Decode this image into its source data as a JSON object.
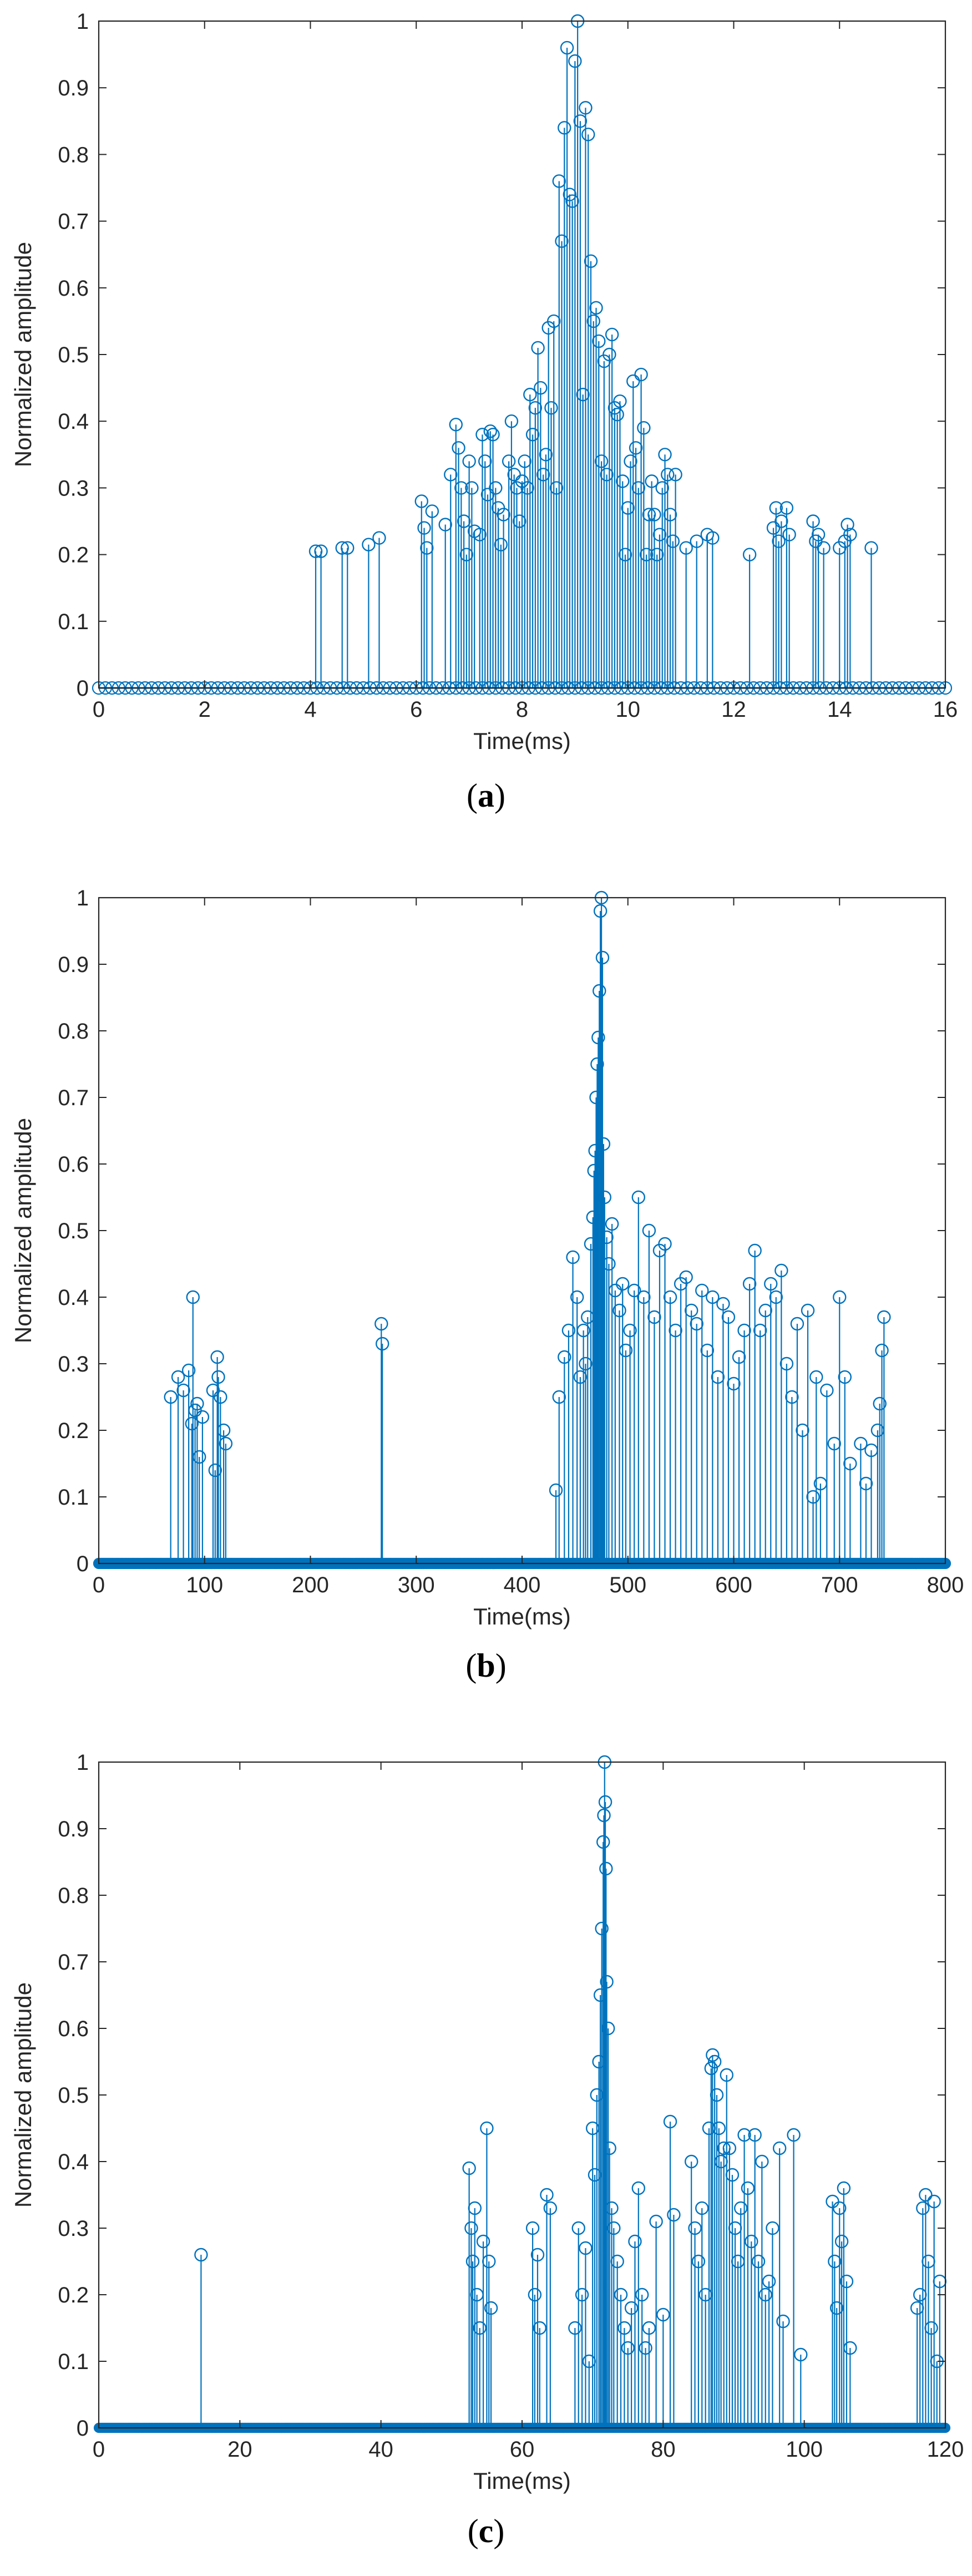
{
  "chart_data": [
    {
      "type": "stem",
      "caption_letter": "a",
      "xlabel": "Time(ms)",
      "ylabel": "Normalized amplitude",
      "xlim": [
        0,
        16
      ],
      "ylim": [
        0,
        1
      ],
      "xticks": [
        0,
        2,
        4,
        6,
        8,
        10,
        12,
        14,
        16
      ],
      "yticks": [
        0,
        0.1,
        0.2,
        0.3,
        0.4,
        0.5,
        0.6,
        0.7,
        0.8,
        0.9,
        1
      ],
      "color": "#0072BD",
      "zero_stems": {
        "start": 0,
        "end": 16,
        "step": 0.125
      },
      "points": [
        [
          4.1,
          0.205
        ],
        [
          4.2,
          0.205
        ],
        [
          4.6,
          0.21
        ],
        [
          4.7,
          0.21
        ],
        [
          5.1,
          0.215
        ],
        [
          5.3,
          0.225
        ],
        [
          6.1,
          0.28
        ],
        [
          6.15,
          0.24
        ],
        [
          6.2,
          0.21
        ],
        [
          6.3,
          0.265
        ],
        [
          6.55,
          0.245
        ],
        [
          6.65,
          0.32
        ],
        [
          6.75,
          0.395
        ],
        [
          6.8,
          0.36
        ],
        [
          6.85,
          0.3
        ],
        [
          6.9,
          0.25
        ],
        [
          6.95,
          0.2
        ],
        [
          7.0,
          0.34
        ],
        [
          7.05,
          0.3
        ],
        [
          7.1,
          0.235
        ],
        [
          7.2,
          0.23
        ],
        [
          7.25,
          0.38
        ],
        [
          7.3,
          0.34
        ],
        [
          7.35,
          0.29
        ],
        [
          7.4,
          0.385
        ],
        [
          7.45,
          0.38
        ],
        [
          7.5,
          0.3
        ],
        [
          7.55,
          0.27
        ],
        [
          7.6,
          0.215
        ],
        [
          7.65,
          0.26
        ],
        [
          7.75,
          0.34
        ],
        [
          7.8,
          0.4
        ],
        [
          7.85,
          0.32
        ],
        [
          7.9,
          0.3
        ],
        [
          7.95,
          0.25
        ],
        [
          8.0,
          0.31
        ],
        [
          8.05,
          0.34
        ],
        [
          8.1,
          0.3
        ],
        [
          8.15,
          0.44
        ],
        [
          8.2,
          0.38
        ],
        [
          8.25,
          0.42
        ],
        [
          8.3,
          0.51
        ],
        [
          8.35,
          0.45
        ],
        [
          8.4,
          0.32
        ],
        [
          8.45,
          0.35
        ],
        [
          8.5,
          0.54
        ],
        [
          8.55,
          0.42
        ],
        [
          8.6,
          0.55
        ],
        [
          8.65,
          0.3
        ],
        [
          8.7,
          0.76
        ],
        [
          8.75,
          0.67
        ],
        [
          8.8,
          0.84
        ],
        [
          8.85,
          0.96
        ],
        [
          8.9,
          0.74
        ],
        [
          8.95,
          0.73
        ],
        [
          9.0,
          0.94
        ],
        [
          9.05,
          1.0
        ],
        [
          9.1,
          0.85
        ],
        [
          9.15,
          0.44
        ],
        [
          9.2,
          0.87
        ],
        [
          9.25,
          0.83
        ],
        [
          9.3,
          0.64
        ],
        [
          9.35,
          0.55
        ],
        [
          9.4,
          0.57
        ],
        [
          9.45,
          0.52
        ],
        [
          9.5,
          0.34
        ],
        [
          9.55,
          0.49
        ],
        [
          9.6,
          0.32
        ],
        [
          9.65,
          0.5
        ],
        [
          9.7,
          0.53
        ],
        [
          9.75,
          0.42
        ],
        [
          9.8,
          0.41
        ],
        [
          9.85,
          0.43
        ],
        [
          9.9,
          0.31
        ],
        [
          9.95,
          0.2
        ],
        [
          10.0,
          0.27
        ],
        [
          10.05,
          0.34
        ],
        [
          10.1,
          0.46
        ],
        [
          10.15,
          0.36
        ],
        [
          10.2,
          0.3
        ],
        [
          10.25,
          0.47
        ],
        [
          10.3,
          0.39
        ],
        [
          10.35,
          0.2
        ],
        [
          10.4,
          0.26
        ],
        [
          10.45,
          0.31
        ],
        [
          10.5,
          0.26
        ],
        [
          10.55,
          0.2
        ],
        [
          10.6,
          0.23
        ],
        [
          10.65,
          0.3
        ],
        [
          10.7,
          0.35
        ],
        [
          10.75,
          0.32
        ],
        [
          10.8,
          0.26
        ],
        [
          10.85,
          0.22
        ],
        [
          10.9,
          0.32
        ],
        [
          11.1,
          0.21
        ],
        [
          11.3,
          0.22
        ],
        [
          11.5,
          0.23
        ],
        [
          11.6,
          0.225
        ],
        [
          12.3,
          0.2
        ],
        [
          12.75,
          0.24
        ],
        [
          12.8,
          0.27
        ],
        [
          12.85,
          0.22
        ],
        [
          12.9,
          0.25
        ],
        [
          13.0,
          0.27
        ],
        [
          13.05,
          0.23
        ],
        [
          13.5,
          0.25
        ],
        [
          13.55,
          0.22
        ],
        [
          13.6,
          0.23
        ],
        [
          13.7,
          0.21
        ],
        [
          14.0,
          0.21
        ],
        [
          14.1,
          0.22
        ],
        [
          14.15,
          0.245
        ],
        [
          14.2,
          0.23
        ],
        [
          14.6,
          0.21
        ]
      ]
    },
    {
      "type": "stem",
      "caption_letter": "b",
      "xlabel": "Time(ms)",
      "ylabel": "Normalized amplitude",
      "xlim": [
        0,
        800
      ],
      "ylim": [
        0,
        1
      ],
      "xticks": [
        0,
        100,
        200,
        300,
        400,
        500,
        600,
        700,
        800
      ],
      "yticks": [
        0,
        0.1,
        0.2,
        0.3,
        0.4,
        0.5,
        0.6,
        0.7,
        0.8,
        0.9,
        1
      ],
      "color": "#0072BD",
      "zero_stems": {
        "start": 0,
        "end": 800,
        "step": 1
      },
      "points": [
        [
          68,
          0.25
        ],
        [
          75,
          0.28
        ],
        [
          80,
          0.26
        ],
        [
          85,
          0.29
        ],
        [
          88,
          0.21
        ],
        [
          89,
          0.4
        ],
        [
          91,
          0.23
        ],
        [
          93,
          0.24
        ],
        [
          95,
          0.16
        ],
        [
          98,
          0.22
        ],
        [
          108,
          0.26
        ],
        [
          110,
          0.14
        ],
        [
          112,
          0.31
        ],
        [
          113,
          0.28
        ],
        [
          115,
          0.25
        ],
        [
          118,
          0.2
        ],
        [
          120,
          0.18
        ],
        [
          267,
          0.36
        ],
        [
          268,
          0.33
        ],
        [
          432,
          0.11
        ],
        [
          435,
          0.25
        ],
        [
          440,
          0.31
        ],
        [
          444,
          0.35
        ],
        [
          448,
          0.46
        ],
        [
          452,
          0.4
        ],
        [
          455,
          0.28
        ],
        [
          458,
          0.35
        ],
        [
          460,
          0.3
        ],
        [
          462,
          0.37
        ],
        [
          465,
          0.48
        ],
        [
          467,
          0.52
        ],
        [
          468,
          0.59
        ],
        [
          469,
          0.62
        ],
        [
          470,
          0.7
        ],
        [
          471,
          0.75
        ],
        [
          472,
          0.79
        ],
        [
          473,
          0.86
        ],
        [
          474,
          0.98
        ],
        [
          475,
          1.0
        ],
        [
          476,
          0.91
        ],
        [
          477,
          0.63
        ],
        [
          478,
          0.55
        ],
        [
          480,
          0.49
        ],
        [
          482,
          0.45
        ],
        [
          485,
          0.51
        ],
        [
          488,
          0.41
        ],
        [
          492,
          0.38
        ],
        [
          495,
          0.42
        ],
        [
          498,
          0.32
        ],
        [
          502,
          0.35
        ],
        [
          506,
          0.41
        ],
        [
          510,
          0.55
        ],
        [
          515,
          0.4
        ],
        [
          520,
          0.5
        ],
        [
          525,
          0.37
        ],
        [
          530,
          0.47
        ],
        [
          535,
          0.48
        ],
        [
          540,
          0.4
        ],
        [
          545,
          0.35
        ],
        [
          550,
          0.42
        ],
        [
          555,
          0.43
        ],
        [
          560,
          0.38
        ],
        [
          565,
          0.36
        ],
        [
          570,
          0.41
        ],
        [
          575,
          0.32
        ],
        [
          580,
          0.4
        ],
        [
          585,
          0.28
        ],
        [
          590,
          0.39
        ],
        [
          595,
          0.37
        ],
        [
          600,
          0.27
        ],
        [
          605,
          0.31
        ],
        [
          610,
          0.35
        ],
        [
          615,
          0.42
        ],
        [
          620,
          0.47
        ],
        [
          625,
          0.35
        ],
        [
          630,
          0.38
        ],
        [
          635,
          0.42
        ],
        [
          640,
          0.4
        ],
        [
          645,
          0.44
        ],
        [
          650,
          0.3
        ],
        [
          655,
          0.25
        ],
        [
          660,
          0.36
        ],
        [
          665,
          0.2
        ],
        [
          670,
          0.38
        ],
        [
          675,
          0.1
        ],
        [
          678,
          0.28
        ],
        [
          682,
          0.12
        ],
        [
          688,
          0.26
        ],
        [
          695,
          0.18
        ],
        [
          700,
          0.4
        ],
        [
          705,
          0.28
        ],
        [
          710,
          0.15
        ],
        [
          720,
          0.18
        ],
        [
          725,
          0.12
        ],
        [
          730,
          0.17
        ],
        [
          736,
          0.2
        ],
        [
          738,
          0.24
        ],
        [
          740,
          0.32
        ],
        [
          742,
          0.37
        ]
      ]
    },
    {
      "type": "stem",
      "caption_letter": "c",
      "xlabel": "Time(ms)",
      "ylabel": "Normalized amplitude",
      "xlim": [
        0,
        120
      ],
      "ylim": [
        0,
        1
      ],
      "xticks": [
        0,
        20,
        40,
        60,
        80,
        100,
        120
      ],
      "yticks": [
        0,
        0.1,
        0.2,
        0.3,
        0.4,
        0.5,
        0.6,
        0.7,
        0.8,
        0.9,
        1
      ],
      "color": "#0072BD",
      "zero_stems": {
        "start": 0,
        "end": 120,
        "step": 0.1
      },
      "points": [
        [
          14.5,
          0.26
        ],
        [
          52.5,
          0.39
        ],
        [
          52.8,
          0.3
        ],
        [
          53.0,
          0.25
        ],
        [
          53.3,
          0.33
        ],
        [
          53.6,
          0.2
        ],
        [
          54.0,
          0.15
        ],
        [
          54.5,
          0.28
        ],
        [
          55.0,
          0.45
        ],
        [
          55.3,
          0.25
        ],
        [
          55.6,
          0.18
        ],
        [
          61.5,
          0.3
        ],
        [
          61.8,
          0.2
        ],
        [
          62.2,
          0.26
        ],
        [
          62.5,
          0.15
        ],
        [
          63.5,
          0.35
        ],
        [
          64.0,
          0.33
        ],
        [
          67.5,
          0.15
        ],
        [
          68.0,
          0.3
        ],
        [
          68.5,
          0.2
        ],
        [
          69.0,
          0.27
        ],
        [
          69.5,
          0.1
        ],
        [
          70.0,
          0.45
        ],
        [
          70.3,
          0.38
        ],
        [
          70.6,
          0.5
        ],
        [
          70.9,
          0.55
        ],
        [
          71.1,
          0.65
        ],
        [
          71.3,
          0.75
        ],
        [
          71.5,
          0.88
        ],
        [
          71.6,
          0.92
        ],
        [
          71.7,
          1.0
        ],
        [
          71.8,
          0.94
        ],
        [
          71.9,
          0.84
        ],
        [
          72.0,
          0.67
        ],
        [
          72.2,
          0.6
        ],
        [
          72.4,
          0.42
        ],
        [
          72.7,
          0.33
        ],
        [
          73.0,
          0.3
        ],
        [
          73.5,
          0.25
        ],
        [
          74.0,
          0.2
        ],
        [
          74.5,
          0.15
        ],
        [
          75.0,
          0.12
        ],
        [
          75.5,
          0.18
        ],
        [
          76.0,
          0.28
        ],
        [
          76.5,
          0.36
        ],
        [
          77.0,
          0.2
        ],
        [
          77.5,
          0.12
        ],
        [
          78.0,
          0.15
        ],
        [
          79.0,
          0.31
        ],
        [
          80.0,
          0.17
        ],
        [
          81.0,
          0.46
        ],
        [
          81.5,
          0.32
        ],
        [
          84.0,
          0.4
        ],
        [
          84.5,
          0.3
        ],
        [
          85.0,
          0.25
        ],
        [
          85.5,
          0.33
        ],
        [
          86.0,
          0.2
        ],
        [
          86.5,
          0.45
        ],
        [
          86.8,
          0.54
        ],
        [
          87.0,
          0.56
        ],
        [
          87.3,
          0.55
        ],
        [
          87.6,
          0.5
        ],
        [
          87.9,
          0.45
        ],
        [
          88.2,
          0.4
        ],
        [
          88.6,
          0.42
        ],
        [
          89.0,
          0.53
        ],
        [
          89.4,
          0.42
        ],
        [
          89.8,
          0.38
        ],
        [
          90.2,
          0.3
        ],
        [
          90.6,
          0.25
        ],
        [
          91.0,
          0.33
        ],
        [
          91.5,
          0.44
        ],
        [
          92.0,
          0.36
        ],
        [
          92.5,
          0.28
        ],
        [
          93.0,
          0.44
        ],
        [
          93.5,
          0.25
        ],
        [
          94.0,
          0.4
        ],
        [
          94.5,
          0.2
        ],
        [
          95.0,
          0.22
        ],
        [
          95.5,
          0.3
        ],
        [
          96.5,
          0.42
        ],
        [
          97.0,
          0.16
        ],
        [
          98.5,
          0.44
        ],
        [
          99.5,
          0.11
        ],
        [
          104.0,
          0.34
        ],
        [
          104.3,
          0.25
        ],
        [
          104.6,
          0.18
        ],
        [
          105.0,
          0.33
        ],
        [
          105.3,
          0.28
        ],
        [
          105.6,
          0.36
        ],
        [
          106.0,
          0.22
        ],
        [
          106.5,
          0.12
        ],
        [
          116.0,
          0.18
        ],
        [
          116.4,
          0.2
        ],
        [
          116.8,
          0.33
        ],
        [
          117.2,
          0.35
        ],
        [
          117.6,
          0.25
        ],
        [
          118.0,
          0.15
        ],
        [
          118.4,
          0.34
        ],
        [
          118.8,
          0.1
        ],
        [
          119.2,
          0.22
        ]
      ]
    }
  ]
}
